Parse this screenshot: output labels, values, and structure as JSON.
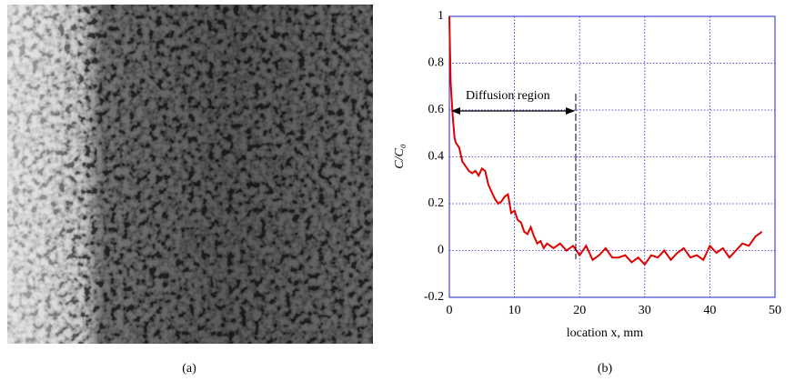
{
  "image_caption": "(a)",
  "chart_data": {
    "type": "line",
    "caption": "(b)",
    "xlabel": "location x,  mm",
    "ylabel": "C/C₀",
    "annotation": "Diffusion region",
    "color": "#e00000",
    "xlim": [
      0,
      50
    ],
    "xticks": [
      0,
      10,
      20,
      30,
      40,
      50
    ],
    "ylim": [
      -0.2,
      1
    ],
    "yticks": [
      -0.2,
      0,
      0.2,
      0.4,
      0.6,
      0.8,
      1
    ],
    "grid": true,
    "x": [
      0,
      0.2,
      0.5,
      0.8,
      1,
      1.5,
      2,
      2.5,
      3,
      3.5,
      4,
      4.5,
      5,
      5.5,
      6,
      6.5,
      7,
      7.5,
      8,
      8.5,
      9,
      9.5,
      10,
      10.5,
      11,
      11.5,
      12,
      12.5,
      13,
      13.5,
      14,
      14.5,
      15,
      16,
      17,
      18,
      19,
      20,
      21,
      22,
      23,
      24,
      25,
      26,
      27,
      28,
      29,
      30,
      31,
      32,
      33,
      34,
      35,
      36,
      37,
      38,
      39,
      40,
      41,
      42,
      43,
      44,
      45,
      46,
      47,
      48
    ],
    "values": [
      1.0,
      0.72,
      0.58,
      0.48,
      0.46,
      0.44,
      0.38,
      0.36,
      0.34,
      0.33,
      0.34,
      0.32,
      0.35,
      0.34,
      0.28,
      0.25,
      0.22,
      0.2,
      0.21,
      0.23,
      0.24,
      0.16,
      0.17,
      0.13,
      0.12,
      0.08,
      0.07,
      0.1,
      0.06,
      0.03,
      0.04,
      0.01,
      0.03,
      0.01,
      0.03,
      0.0,
      0.02,
      -0.02,
      0.02,
      -0.04,
      -0.02,
      0.01,
      -0.03,
      -0.03,
      -0.02,
      -0.05,
      -0.03,
      -0.06,
      -0.02,
      -0.03,
      0.0,
      -0.04,
      -0.01,
      0.01,
      -0.03,
      -0.02,
      -0.04,
      0.02,
      -0.01,
      0.01,
      -0.03,
      0.0,
      0.03,
      0.02,
      0.06,
      0.08
    ]
  }
}
